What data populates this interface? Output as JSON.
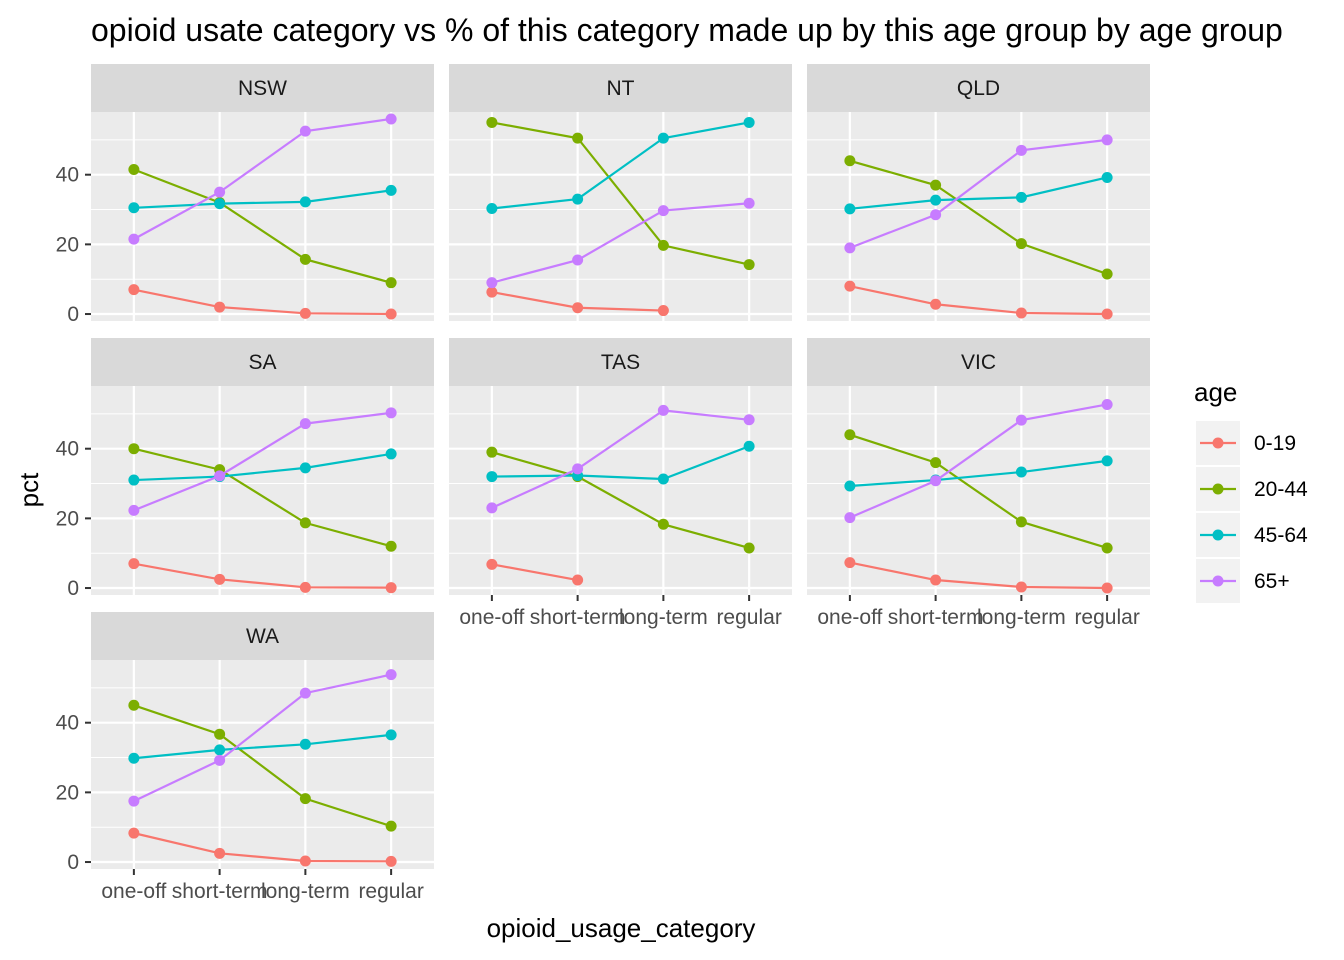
{
  "chart_data": {
    "type": "line",
    "title": "opioid usate category vs % of this category made up by this age group by age group",
    "xlabel": "opioid_usage_category",
    "ylabel": "pct",
    "categories": [
      "one-off",
      "short-term",
      "long-term",
      "regular"
    ],
    "y_ticks": [
      0,
      20,
      40
    ],
    "ylim": [
      -2,
      58
    ],
    "grid": true,
    "legend": {
      "title": "age",
      "position": "right",
      "entries": [
        {
          "name": "0-19",
          "color": "#F8766D"
        },
        {
          "name": "20-44",
          "color": "#7CAE00"
        },
        {
          "name": "45-64",
          "color": "#00BFC4"
        },
        {
          "name": "65+",
          "color": "#C77CFF"
        }
      ]
    },
    "panels": [
      {
        "name": "NSW",
        "series": [
          {
            "name": "0-19",
            "values": [
              7,
              2,
              0.2,
              0
            ]
          },
          {
            "name": "20-44",
            "values": [
              41.5,
              32,
              15.7,
              9
            ]
          },
          {
            "name": "45-64",
            "values": [
              30.5,
              31.7,
              32.2,
              35.5
            ]
          },
          {
            "name": "65+",
            "values": [
              21.5,
              35,
              52.5,
              56
            ]
          }
        ]
      },
      {
        "name": "NT",
        "series": [
          {
            "name": "0-19",
            "values": [
              6.3,
              1.8,
              1,
              null
            ]
          },
          {
            "name": "20-44",
            "values": [
              55,
              50.5,
              19.7,
              14.2
            ]
          },
          {
            "name": "45-64",
            "values": [
              30.3,
              33,
              50.5,
              55
            ]
          },
          {
            "name": "65+",
            "values": [
              9,
              15.5,
              29.7,
              31.8
            ]
          }
        ]
      },
      {
        "name": "QLD",
        "series": [
          {
            "name": "0-19",
            "values": [
              8,
              2.8,
              0.3,
              0
            ]
          },
          {
            "name": "20-44",
            "values": [
              44,
              37,
              20.2,
              11.5
            ]
          },
          {
            "name": "45-64",
            "values": [
              30.2,
              32.7,
              33.5,
              39.2
            ]
          },
          {
            "name": "65+",
            "values": [
              19,
              28.5,
              47,
              50
            ]
          }
        ]
      },
      {
        "name": "SA",
        "series": [
          {
            "name": "0-19",
            "values": [
              7,
              2.5,
              0.2,
              0.1
            ]
          },
          {
            "name": "20-44",
            "values": [
              40,
              34,
              18.7,
              12
            ]
          },
          {
            "name": "45-64",
            "values": [
              31,
              32,
              34.5,
              38.5
            ]
          },
          {
            "name": "65+",
            "values": [
              22.3,
              32.2,
              47.2,
              50.3
            ]
          }
        ]
      },
      {
        "name": "TAS",
        "series": [
          {
            "name": "0-19",
            "values": [
              6.8,
              2.3,
              null,
              null
            ]
          },
          {
            "name": "20-44",
            "values": [
              39,
              32,
              18.3,
              11.5
            ]
          },
          {
            "name": "45-64",
            "values": [
              32,
              32.3,
              31.3,
              40.7
            ]
          },
          {
            "name": "65+",
            "values": [
              23,
              34.2,
              51,
              48.3
            ]
          }
        ]
      },
      {
        "name": "VIC",
        "series": [
          {
            "name": "0-19",
            "values": [
              7.3,
              2.3,
              0.3,
              0
            ]
          },
          {
            "name": "20-44",
            "values": [
              44,
              36,
              19,
              11.5
            ]
          },
          {
            "name": "45-64",
            "values": [
              29.3,
              31,
              33.3,
              36.5
            ]
          },
          {
            "name": "65+",
            "values": [
              20.2,
              30.8,
              48.2,
              52.7
            ]
          }
        ]
      },
      {
        "name": "WA",
        "series": [
          {
            "name": "0-19",
            "values": [
              8.3,
              2.5,
              0.3,
              0.2
            ]
          },
          {
            "name": "20-44",
            "values": [
              45,
              36.7,
              18.2,
              10.3
            ]
          },
          {
            "name": "45-64",
            "values": [
              29.8,
              32.2,
              33.8,
              36.5
            ]
          },
          {
            "name": "65+",
            "values": [
              17.5,
              29.2,
              48.5,
              53.8
            ]
          }
        ]
      }
    ]
  }
}
